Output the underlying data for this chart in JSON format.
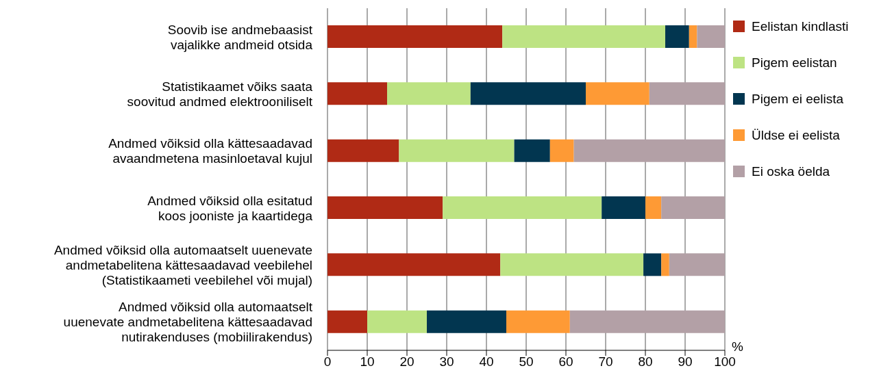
{
  "chart_data": {
    "type": "bar",
    "orientation": "horizontal",
    "stacked": true,
    "categories": [
      "Soovib ise andmebaasist\nvajalikke andmeid otsida",
      "Statistikaamet võiks saata\nsoovitud andmed elektrooniliselt",
      "Andmed võiksid olla kättesaadavad\navaandmetena masinloetaval kujul",
      "Andmed võiksid olla esitatud\nkoos jooniste ja kaartidega",
      "Andmed võiksid olla automaatselt uuenevate\nandmetabelitena kättesaadavad veebilehel\n(Statistikaameti veebilehel või mujal)",
      "Andmed võiksid olla automaatselt\nuuenevate andmetabelitena kättesaadavad\nnutirakenduses (mobiilirakendus)"
    ],
    "series": [
      {
        "name": "Eelistan kindlasti",
        "color": "#b02a15",
        "values": [
          44,
          15,
          18,
          29,
          43.5,
          10
        ]
      },
      {
        "name": "Pigem eelistan",
        "color": "#bde383",
        "values": [
          41,
          21,
          29,
          40,
          36,
          15
        ]
      },
      {
        "name": "Pigem ei eelista",
        "color": "#023650",
        "values": [
          6,
          29,
          9,
          11,
          4.5,
          20
        ]
      },
      {
        "name": "Üldse ei eelista",
        "color": "#fe9a35",
        "values": [
          2,
          16,
          6,
          4,
          2,
          16
        ]
      },
      {
        "name": "Ei oska öelda",
        "color": "#b3a0a6",
        "values": [
          7,
          19,
          38,
          16,
          14,
          39
        ]
      }
    ],
    "xlabel": "%",
    "xlim": [
      0,
      100
    ],
    "xticks": [
      0,
      10,
      20,
      30,
      40,
      50,
      60,
      70,
      80,
      90,
      100
    ],
    "grid": "x",
    "legend": "right"
  }
}
